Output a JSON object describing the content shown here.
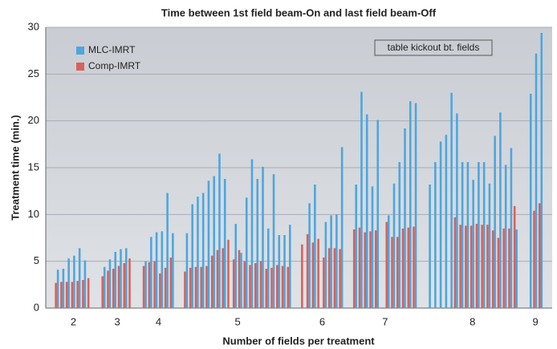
{
  "chart_data": {
    "type": "grouped-bar",
    "title": "Time between 1st field beam-On and last field beam-Off",
    "xlabel": "Number of fields per treatment",
    "ylabel": "Treatment time (min.)",
    "annotation": "table kickout bt. fields",
    "categories": [
      "2",
      "3",
      "4",
      "5",
      "6",
      "7",
      "8",
      "9"
    ],
    "ylim": [
      0,
      30
    ],
    "yticks": [
      0,
      5,
      10,
      15,
      20,
      25,
      30
    ],
    "grid": true,
    "legend": "upper left",
    "series": [
      {
        "name": "MLC-IMRT",
        "color": "#4da6dc",
        "values": [
          [
            4.1,
            4.2,
            5.3,
            5.6,
            6.4,
            5.1,
            null
          ],
          [
            4.4,
            5.2,
            6.0,
            6.3,
            6.4,
            null
          ],
          [
            5.0,
            7.6,
            8.1,
            8.2,
            12.3,
            8.0
          ],
          [
            8.0,
            11.1,
            11.9,
            12.3,
            13.6,
            14.1,
            16.5,
            13.8,
            null,
            9.0,
            5.9,
            11.8,
            15.9,
            13.8,
            15.1,
            8.5,
            14.3,
            7.8,
            7.8,
            8.9
          ],
          [
            null,
            11.2,
            13.2,
            null,
            9.2,
            9.9,
            10.0,
            17.2
          ],
          [
            13.2,
            23.1,
            20.7,
            13.0,
            20.1,
            null,
            9.9,
            13.3,
            15.6,
            19.2,
            22.1,
            21.9
          ],
          [
            13.2,
            15.6,
            17.8,
            18.5,
            23.0,
            20.8,
            15.6,
            15.6,
            13.7,
            15.6,
            15.6,
            13.3,
            18.4,
            20.9,
            15.3,
            17.1,
            8.4
          ],
          [
            22.9,
            27.2,
            29.4
          ]
        ]
      },
      {
        "name": "Comp-IMRT",
        "color": "#d8625b",
        "values": [
          [
            2.7,
            2.8,
            2.8,
            2.8,
            2.9,
            3.0,
            3.2
          ],
          [
            3.4,
            4.0,
            4.2,
            4.5,
            4.8,
            5.3
          ],
          [
            4.5,
            4.9,
            5.0,
            3.7,
            4.3,
            5.4
          ],
          [
            3.9,
            4.3,
            4.4,
            4.4,
            4.5,
            5.6,
            6.2,
            6.4,
            7.3,
            5.2,
            6.2,
            5.0,
            4.6,
            4.8,
            5.0,
            4.2,
            4.3,
            4.6,
            4.5,
            4.4
          ],
          [
            6.8,
            7.9,
            7.0,
            7.4,
            5.4,
            6.4,
            6.4,
            6.3
          ],
          [
            8.4,
            8.6,
            8.1,
            8.2,
            8.3,
            null,
            9.2,
            7.6,
            7.6,
            8.5,
            8.6,
            8.7
          ],
          [
            null,
            null,
            null,
            null,
            null,
            9.7,
            8.9,
            8.8,
            8.8,
            9.0,
            8.9,
            8.9,
            8.3,
            7.5,
            8.5,
            8.5,
            10.9
          ],
          [
            null,
            10.4,
            11.2
          ]
        ]
      }
    ]
  }
}
